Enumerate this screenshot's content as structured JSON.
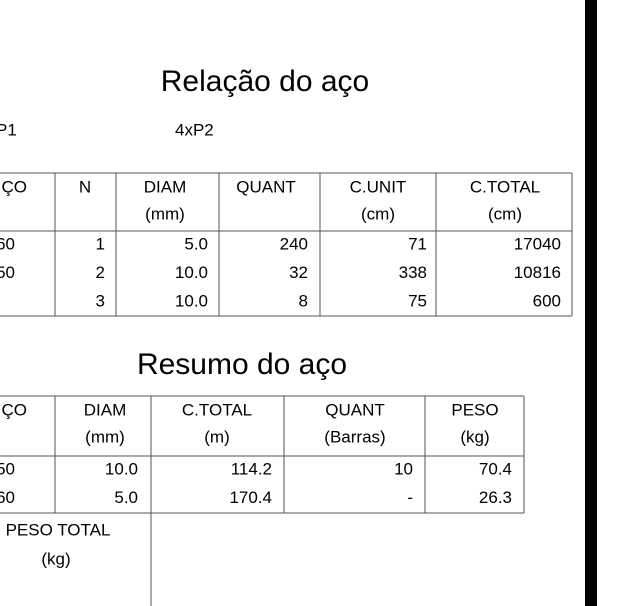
{
  "title1": "Relação do aço",
  "labels": [
    "P1",
    "4xP2"
  ],
  "table1": {
    "header": [
      [
        "ÇO"
      ],
      [
        "N"
      ],
      [
        "DIAM",
        "(mm)"
      ],
      [
        "QUANT"
      ],
      [
        "C.UNIT",
        "(cm)"
      ],
      [
        "C.TOTAL",
        "(cm)"
      ]
    ],
    "rows": [
      [
        "60",
        "1",
        "5.0",
        "240",
        "71",
        "17040"
      ],
      [
        "50",
        "2",
        "10.0",
        "32",
        "338",
        "10816"
      ],
      [
        null,
        "3",
        "10.0",
        "8",
        "75",
        "600"
      ]
    ]
  },
  "title2": "Resumo do aço",
  "table2": {
    "header": [
      [
        "ÇO"
      ],
      [
        "DIAM",
        "(mm)"
      ],
      [
        "C.TOTAL",
        "(m)"
      ],
      [
        "QUANT",
        "(Barras)"
      ],
      [
        "PESO",
        "(kg)"
      ]
    ],
    "rows": [
      [
        "50",
        "10.0",
        "114.2",
        "10",
        "70.4"
      ],
      [
        "60",
        "5.0",
        "170.4",
        "-",
        "26.3"
      ]
    ],
    "total_label": [
      "PESO TOTAL",
      "(kg)"
    ]
  }
}
